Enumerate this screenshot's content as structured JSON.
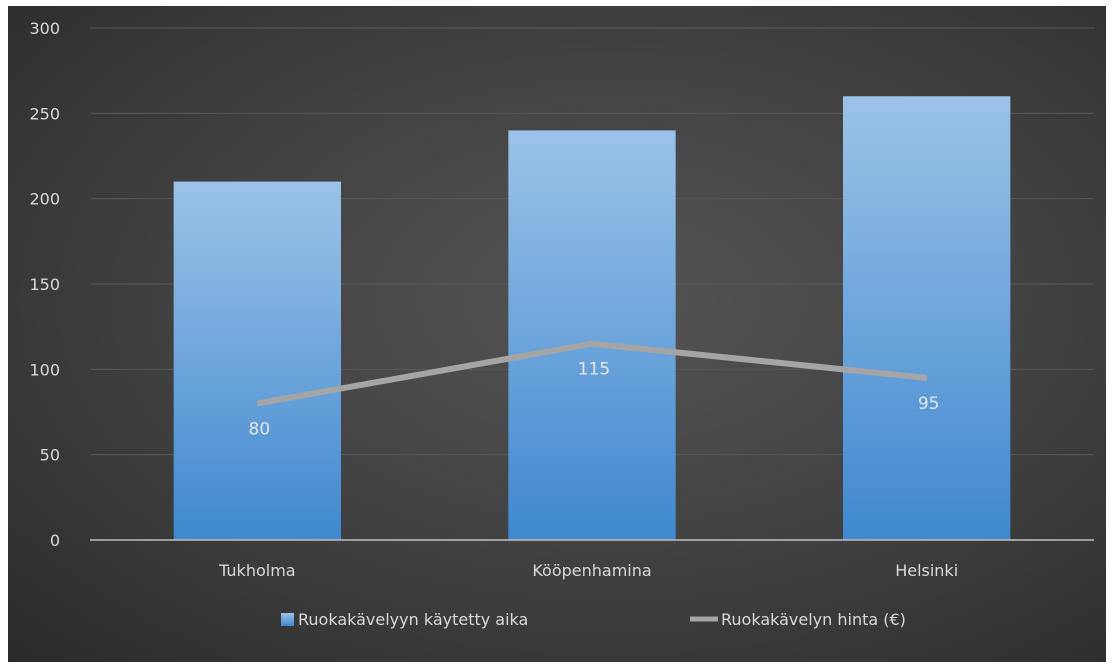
{
  "chart_data": {
    "type": "bar",
    "categories": [
      "Tukholma",
      "Kööpenhamina",
      "Helsinki"
    ],
    "series": [
      {
        "name": "Ruokakävelyyn käytetty aika",
        "type": "bar",
        "values": [
          210,
          240,
          260
        ],
        "color": "#5b9bd5"
      },
      {
        "name": "Ruokakävelyn hinta (€)",
        "type": "line",
        "values": [
          80,
          115,
          95
        ],
        "data_labels": [
          "80",
          "115",
          "95"
        ],
        "color": "#a5a5a5"
      }
    ],
    "title": "",
    "xlabel": "",
    "ylabel": "",
    "ylim": [
      0,
      300
    ],
    "yticks": [
      "0",
      "50",
      "100",
      "150",
      "200",
      "250",
      "300"
    ],
    "grid": "horizontal",
    "legend_position": "bottom"
  },
  "colors": {
    "background_center": "#545454",
    "background_edge": "#2b2b2b",
    "gridline": "#595959",
    "axis": "#bfbfbf"
  }
}
